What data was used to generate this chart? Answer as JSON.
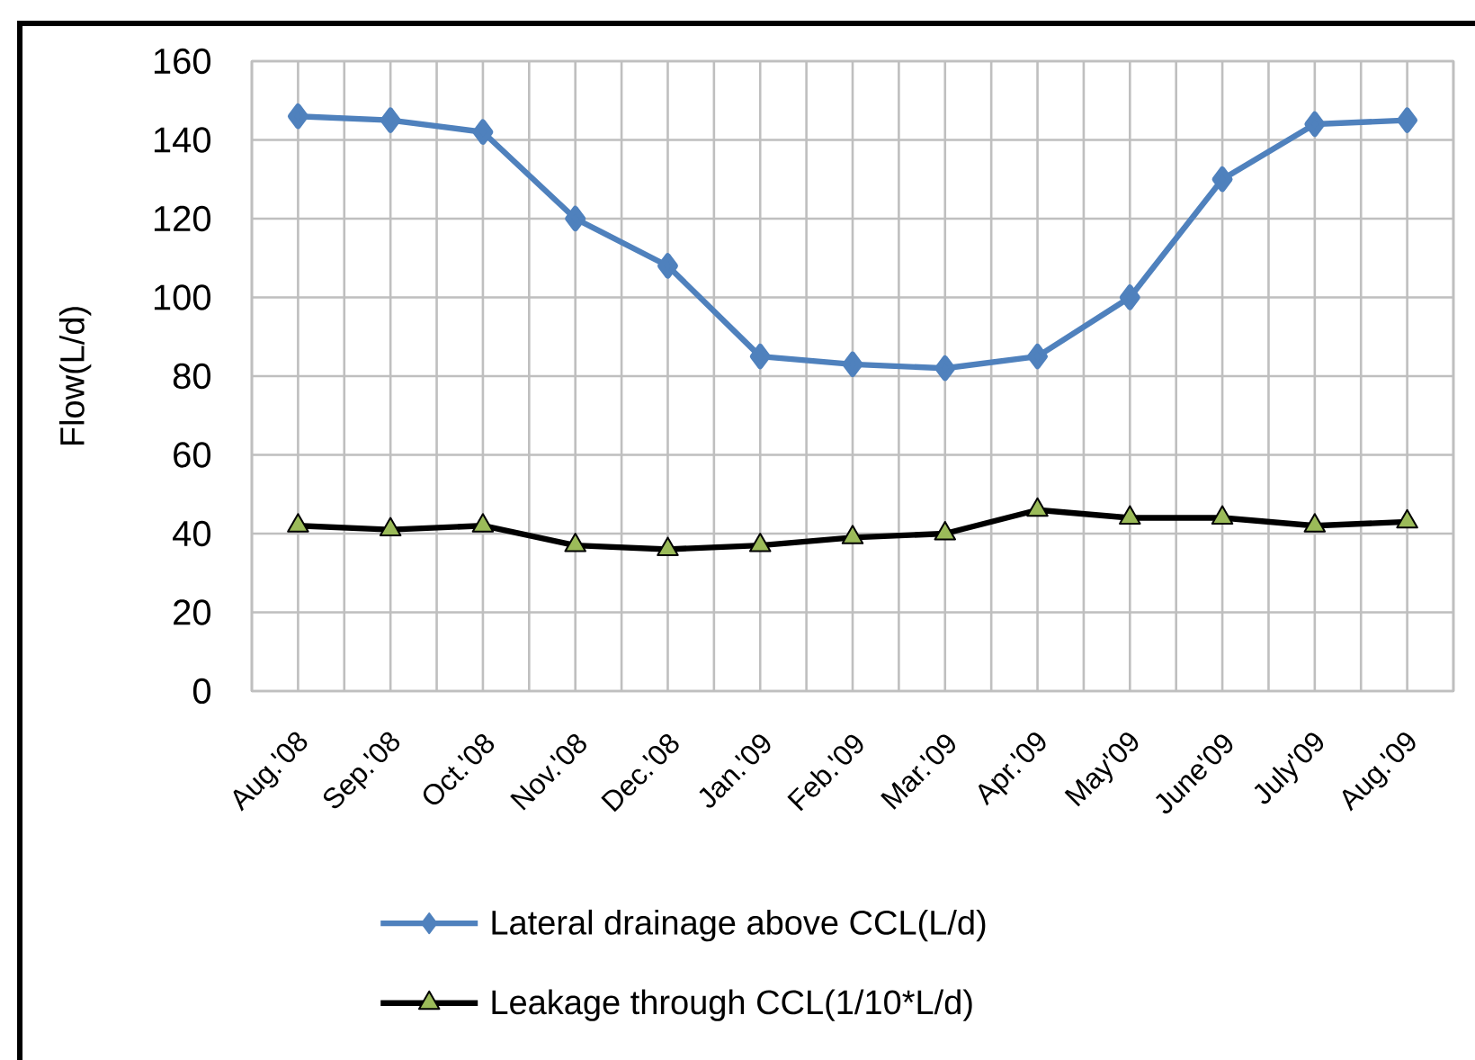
{
  "chart_data": {
    "type": "line",
    "ylabel": "Flow(L/d)",
    "categories": [
      "Aug.'08",
      "Sep.'08",
      "Oct.'08",
      "Nov.'08",
      "Dec.'08",
      "Jan.'09",
      "Feb.'09",
      "Mar.'09",
      "Apr.'09",
      "May'09",
      "June'09",
      "July'09",
      "Aug.'09"
    ],
    "series": [
      {
        "name": "Lateral drainage above CCL(L/d)",
        "color": "#4f81bd",
        "marker": "diamond",
        "values": [
          146,
          145,
          142,
          120,
          108,
          85,
          83,
          82,
          85,
          100,
          130,
          144,
          145
        ]
      },
      {
        "name": "Leakage through CCL(1/10*L/d)",
        "color": "#000000",
        "marker": "triangle",
        "colors": [
          "#9bbb59",
          "#9bbb59",
          "#9bbb59",
          "#9bbb59",
          "#9bbb59",
          "#9bbb59",
          "#9bbb59",
          "#9bbb59",
          "#9bbb59",
          "#9bbb59",
          "#9bbb59",
          "#9bbb59",
          "#9bbb59"
        ],
        "values": [
          42,
          41,
          42,
          37,
          36,
          37,
          39,
          40,
          46,
          44,
          44,
          42,
          43
        ]
      }
    ],
    "ylim": [
      0,
      160
    ],
    "yticks": [
      0,
      20,
      40,
      60,
      80,
      100,
      120,
      140,
      160
    ],
    "grid": true,
    "legend": "bottom",
    "line_style": "solid"
  }
}
